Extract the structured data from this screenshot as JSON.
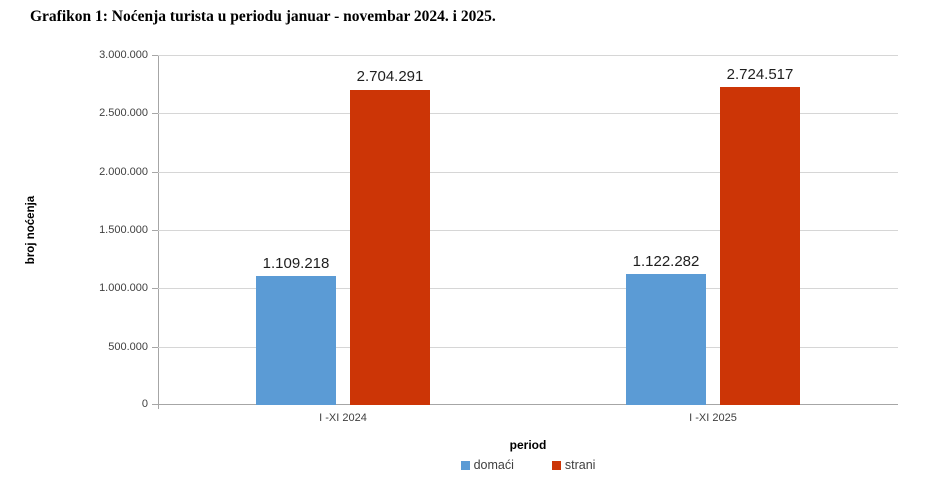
{
  "figure": {
    "title": "Grafikon 1: Noćenja turista u periodu januar - novembar 2024. i 2025."
  },
  "chart_data": {
    "type": "bar",
    "title": "Grafikon 1: Noćenja turista u periodu januar - novembar 2024. i 2025.",
    "categories": [
      "I -XI 2024",
      "I -XI 2025"
    ],
    "series": [
      {
        "name": "domaći",
        "color": "#5B9BD5",
        "values": [
          1109218,
          1122282
        ]
      },
      {
        "name": "strani",
        "color": "#CC3506",
        "values": [
          2704291,
          2724517
        ]
      }
    ],
    "data_labels": [
      [
        "1.109.218",
        "1.122.282"
      ],
      [
        "2.704.291",
        "2.724.517"
      ]
    ],
    "xlabel": "period",
    "ylabel": "broj noćenja",
    "ylim": [
      0,
      3000000
    ],
    "ytick_step": 500000,
    "ytick_labels": [
      "0",
      "500.000",
      "1.000.000",
      "1.500.000",
      "2.000.000",
      "2.500.000",
      "3.000.000"
    ],
    "grid": true,
    "legend_position": "bottom",
    "colors": {
      "gridline": "#d6d6d6",
      "axis_line": "#a6a6a6",
      "tick_text": "#404040",
      "data_label_text": "#1f1f1f"
    }
  }
}
